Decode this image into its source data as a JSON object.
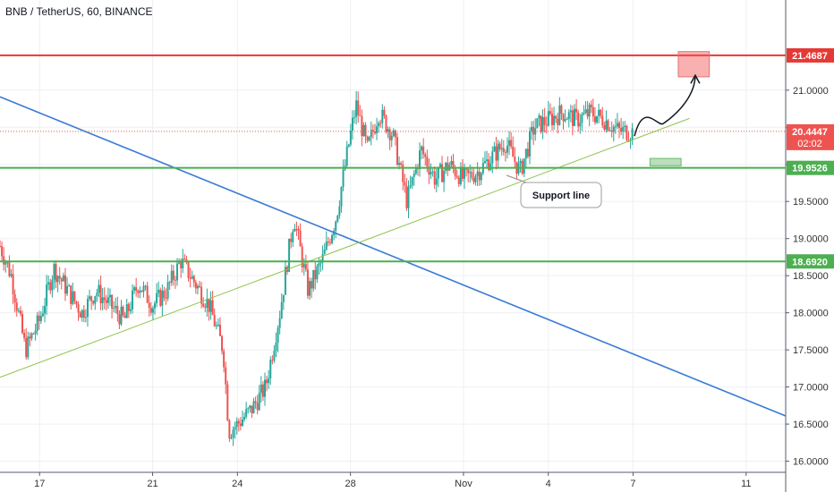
{
  "title": "BNB / TetherUS, 60, BINANCE",
  "colors": {
    "up": "#26a69a",
    "down": "#ef5350",
    "resistance": "#e53935",
    "support": "#4caf50",
    "trendline_blue": "#3a7bd5",
    "support_line": "#8bc34a",
    "grid": "#eef0f3",
    "current_price": "#ef5350"
  },
  "chart_data": {
    "type": "candlestick",
    "symbol": "BNB / TetherUS",
    "interval": "60",
    "exchange": "BINANCE",
    "ylim": [
      15.85,
      21.95
    ],
    "y_ticks": [
      "16.0000",
      "16.5000",
      "17.0000",
      "17.5000",
      "18.0000",
      "18.5000",
      "19.0000",
      "19.5000",
      "20.0000",
      "20.5000",
      "21.0000"
    ],
    "x_ticks": [
      "17",
      "21",
      "24",
      "28",
      "Nov",
      "4",
      "7",
      "11"
    ],
    "x_tick_days": [
      17,
      21,
      24,
      28,
      32,
      35,
      38,
      42
    ],
    "day_range": [
      15.6,
      43.4
    ],
    "price_series": {
      "days": [
        15.6,
        16.0,
        16.5,
        17.0,
        17.5,
        18.0,
        18.5,
        19.0,
        19.5,
        20.0,
        20.5,
        21.0,
        21.5,
        22.0,
        22.5,
        23.0,
        23.5,
        23.7,
        24.0,
        24.5,
        25.0,
        25.5,
        26.0,
        26.5,
        27.0,
        27.5,
        28.0,
        28.2,
        28.6,
        29.0,
        29.5,
        30.0,
        30.5,
        31.0,
        31.5,
        32.0,
        32.5,
        33.0,
        33.5,
        34.0,
        34.5,
        35.0,
        35.5,
        36.0,
        36.5,
        37.0,
        37.5,
        38.0
      ],
      "closes": [
        18.9,
        18.5,
        17.5,
        17.9,
        18.6,
        18.3,
        18.0,
        18.3,
        18.1,
        17.9,
        18.4,
        18.1,
        18.3,
        18.7,
        18.4,
        18.1,
        17.5,
        16.4,
        16.5,
        16.7,
        17.0,
        18.0,
        19.3,
        18.3,
        18.7,
        19.3,
        20.4,
        20.8,
        20.2,
        20.7,
        20.4,
        19.5,
        20.2,
        19.8,
        20.0,
        19.8,
        19.9,
        20.1,
        20.3,
        19.9,
        20.5,
        20.6,
        20.7,
        20.6,
        20.7,
        20.6,
        20.45,
        20.44
      ]
    },
    "horizontal_levels": [
      {
        "price": 21.4687,
        "label": "21.4687",
        "style": "resistance"
      },
      {
        "price": 19.9526,
        "label": "19.9526",
        "style": "support"
      },
      {
        "price": 18.692,
        "label": "18.6920",
        "style": "support"
      }
    ],
    "current_price": {
      "price": 20.4447,
      "label": "20.4447",
      "countdown": "02:02"
    },
    "trendlines": [
      {
        "name": "descending",
        "from": [
          15.6,
          20.91
        ],
        "to": [
          43.4,
          16.61
        ]
      },
      {
        "name": "ascending",
        "from": [
          15.6,
          17.13
        ],
        "to": [
          40.0,
          20.62
        ]
      }
    ],
    "annotation": {
      "text": "Support line"
    },
    "projection": {
      "target_zone": {
        "day_from": 39.6,
        "day_to": 40.7,
        "price_from": 21.18,
        "price_to": 21.52
      },
      "support_zone": {
        "day_from": 38.6,
        "day_to": 39.7,
        "price_from": 19.98,
        "price_to": 20.08
      }
    }
  }
}
